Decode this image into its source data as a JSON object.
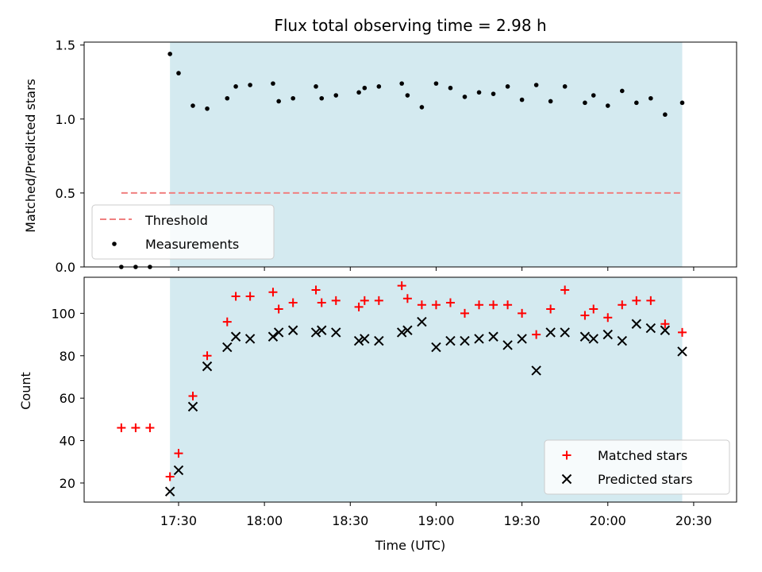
{
  "figure": {
    "title": "Flux total observing time = 2.98 h",
    "xlabel": "Time (UTC)",
    "x_ticks": [
      "17:30",
      "18:00",
      "18:30",
      "19:00",
      "19:30",
      "20:00",
      "20:30"
    ],
    "colors": {
      "shade": "#d4eaf0",
      "threshold": "#f08080",
      "measurement": "#000000",
      "matched": "#ff0000",
      "predicted": "#000000"
    }
  },
  "chart_data": [
    {
      "type": "scatter",
      "ylabel": "Matched/Predicted stars",
      "ylim": [
        0,
        1.52
      ],
      "y_ticks": [
        "0.0",
        "0.5",
        "1.0",
        "1.5"
      ],
      "xlim_minutes_after_17": [
        -3,
        225
      ],
      "shaded_span": [
        "17:27",
        "20:26"
      ],
      "legend": {
        "placement": "lower-left",
        "entries": [
          "Threshold",
          "Measurements"
        ]
      },
      "series": [
        {
          "name": "Threshold",
          "kind": "dashed-line",
          "x": [
            "17:10",
            "20:26"
          ],
          "y": [
            0.5,
            0.5
          ]
        },
        {
          "name": "Measurements",
          "kind": "points",
          "x": [
            "17:10",
            "17:15",
            "17:20",
            "17:27",
            "17:30",
            "17:35",
            "17:40",
            "17:47",
            "17:50",
            "17:55",
            "18:03",
            "18:05",
            "18:10",
            "18:18",
            "18:20",
            "18:25",
            "18:33",
            "18:35",
            "18:40",
            "18:48",
            "18:50",
            "18:55",
            "19:00",
            "19:05",
            "19:10",
            "19:15",
            "19:20",
            "19:25",
            "19:30",
            "19:35",
            "19:40",
            "19:45",
            "19:52",
            "19:55",
            "20:00",
            "20:05",
            "20:10",
            "20:15",
            "20:20",
            "20:26"
          ],
          "y": [
            0.0,
            0.0,
            0.0,
            1.44,
            1.31,
            1.09,
            1.07,
            1.14,
            1.22,
            1.23,
            1.24,
            1.12,
            1.14,
            1.22,
            1.14,
            1.16,
            1.18,
            1.21,
            1.22,
            1.24,
            1.16,
            1.08,
            1.24,
            1.21,
            1.15,
            1.18,
            1.17,
            1.22,
            1.13,
            1.23,
            1.12,
            1.22,
            1.11,
            1.16,
            1.09,
            1.19,
            1.11,
            1.14,
            1.03,
            1.11
          ]
        }
      ]
    },
    {
      "type": "scatter",
      "ylabel": "Count",
      "ylim": [
        11,
        117
      ],
      "y_ticks": [
        "20",
        "40",
        "60",
        "80",
        "100"
      ],
      "xlim_minutes_after_17": [
        -3,
        225
      ],
      "shaded_span": [
        "17:27",
        "20:26"
      ],
      "legend": {
        "placement": "lower-right",
        "entries": [
          "Matched stars",
          "Predicted stars"
        ]
      },
      "series": [
        {
          "name": "Matched stars",
          "marker": "plus",
          "x": [
            "17:10",
            "17:15",
            "17:20",
            "17:27",
            "17:30",
            "17:35",
            "17:40",
            "17:47",
            "17:50",
            "17:55",
            "18:03",
            "18:05",
            "18:10",
            "18:18",
            "18:20",
            "18:25",
            "18:33",
            "18:35",
            "18:40",
            "18:48",
            "18:50",
            "18:55",
            "19:00",
            "19:05",
            "19:10",
            "19:15",
            "19:20",
            "19:25",
            "19:30",
            "19:35",
            "19:40",
            "19:45",
            "19:52",
            "19:55",
            "20:00",
            "20:05",
            "20:10",
            "20:15",
            "20:20",
            "20:26"
          ],
          "y": [
            46,
            46,
            46,
            23,
            34,
            61,
            80,
            96,
            108,
            108,
            110,
            102,
            105,
            111,
            105,
            106,
            103,
            106,
            106,
            113,
            107,
            104,
            104,
            105,
            100,
            104,
            104,
            104,
            100,
            90,
            102,
            111,
            99,
            102,
            98,
            104,
            106,
            106,
            95,
            91
          ]
        },
        {
          "name": "Predicted stars",
          "marker": "x",
          "x": [
            "17:27",
            "17:30",
            "17:35",
            "17:40",
            "17:47",
            "17:50",
            "17:55",
            "18:03",
            "18:05",
            "18:10",
            "18:18",
            "18:20",
            "18:25",
            "18:33",
            "18:35",
            "18:40",
            "18:48",
            "18:50",
            "18:55",
            "19:00",
            "19:05",
            "19:10",
            "19:15",
            "19:20",
            "19:25",
            "19:30",
            "19:35",
            "19:40",
            "19:45",
            "19:52",
            "19:55",
            "20:00",
            "20:05",
            "20:10",
            "20:15",
            "20:20",
            "20:26"
          ],
          "y": [
            16,
            26,
            56,
            75,
            84,
            89,
            88,
            89,
            91,
            92,
            91,
            92,
            91,
            87,
            88,
            87,
            91,
            92,
            96,
            84,
            87,
            87,
            88,
            89,
            85,
            88,
            73,
            91,
            91,
            89,
            88,
            90,
            87,
            95,
            93,
            92,
            82
          ]
        }
      ]
    }
  ]
}
